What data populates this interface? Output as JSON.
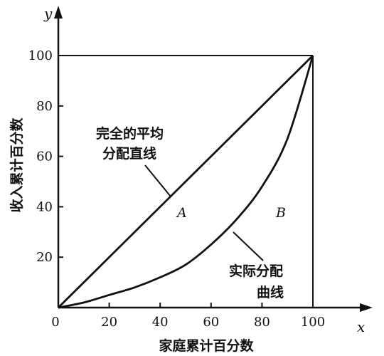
{
  "chart_data": {
    "type": "line",
    "title": "",
    "xlabel": "家庭累计百分数",
    "ylabel": "收入累计百分数",
    "x_var": "x",
    "y_var": "y",
    "xlim": [
      0,
      100
    ],
    "ylim": [
      0,
      100
    ],
    "x_ticks": [
      0,
      20,
      40,
      60,
      80,
      100
    ],
    "y_ticks": [
      20,
      40,
      60,
      80,
      100
    ],
    "x_tick_labels": [
      "0",
      "20",
      "40",
      "60",
      "80",
      "100"
    ],
    "y_tick_labels": [
      "20",
      "40",
      "60",
      "80",
      "100"
    ],
    "grid": false,
    "series": [
      {
        "name": "完全的平均分配直线",
        "x": [
          0,
          100
        ],
        "y": [
          0,
          100
        ]
      },
      {
        "name": "实际分配曲线",
        "x": [
          0,
          10,
          20,
          30,
          40,
          50,
          60,
          70,
          80,
          90,
          100
        ],
        "y": [
          0,
          2,
          5,
          8,
          12,
          17,
          25,
          35,
          48,
          67,
          100
        ]
      }
    ],
    "annotations": [
      {
        "id": "line_label_1",
        "text": "完全的平均"
      },
      {
        "id": "line_label_2",
        "text": "分配直线"
      },
      {
        "id": "curve_label_1",
        "text": "实际分配"
      },
      {
        "id": "curve_label_2",
        "text": "曲线"
      },
      {
        "id": "region_a",
        "text": "A"
      },
      {
        "id": "region_b",
        "text": "B"
      }
    ]
  }
}
